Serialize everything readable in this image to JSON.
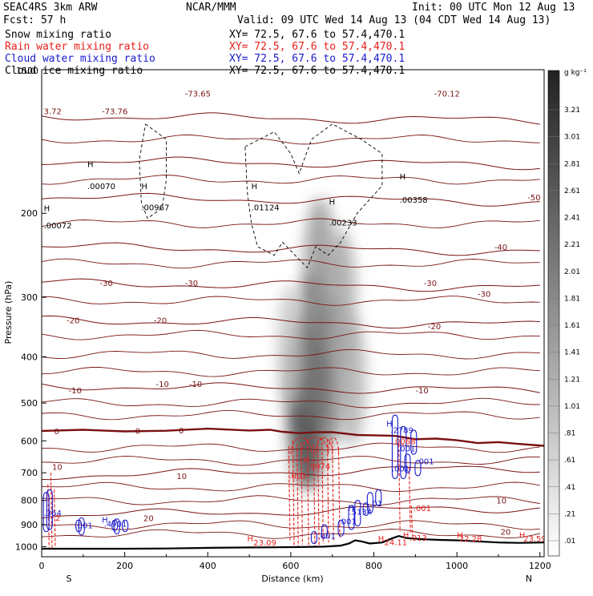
{
  "header": {
    "model": "SEAC4RS  3km ARW",
    "org": "NCAR/MMM",
    "init": "Init: 00 UTC Mon 12 Aug 13",
    "fcst": "Fcst:   57 h",
    "valid": "Valid: 09 UTC Wed 14 Aug 13 (04 CDT Wed 14 Aug 13)",
    "fields": [
      {
        "name": "Snow mixing ratio",
        "xy": "XY=  72.5, 67.6 to  57.4,470.1",
        "color": "#000000"
      },
      {
        "name": "Rain water mixing ratio",
        "xy": "XY=  72.5, 67.6 to  57.4,470.1",
        "color": "#e8201c"
      },
      {
        "name": "Cloud water mixing ratio",
        "xy": "XY=  72.5, 67.6 to  57.4,470.1",
        "color": "#1a1acc"
      },
      {
        "name": "Cloud ice mixing ratio",
        "xy": "XY=  72.5, 67.6 to  57.4,470.1",
        "color": "#000000"
      }
    ]
  },
  "chart_data": {
    "type": "heatmap",
    "xlabel": "Distance (km)",
    "ylabel": "Pressure (hPa)",
    "xlim": [
      0,
      1210
    ],
    "ylim": [
      1050,
      100
    ],
    "x_ticks": [
      0,
      200,
      400,
      600,
      800,
      1000,
      1200
    ],
    "y_ticks": [
      1000,
      900,
      800,
      700,
      600,
      500,
      400,
      300,
      200
    ],
    "y_top_label": "1500",
    "direction_labels": {
      "left": "S",
      "right": "N"
    },
    "colorbar": {
      "unit": "g kg⁻¹",
      "labels": [
        "3.21",
        "3.01",
        "2.81",
        "2.61",
        "2.41",
        "2.21",
        "2.01",
        "1.81",
        "1.61",
        "1.41",
        "1.21",
        "1.01",
        ".81",
        ".61",
        ".41",
        ".21",
        ".01"
      ]
    },
    "snow_shading": [
      {
        "x": 640,
        "p": 500,
        "amount": 3.2
      },
      {
        "x": 655,
        "p": 380,
        "amount": 2.0
      },
      {
        "x": 670,
        "p": 260,
        "amount": 1.5
      },
      {
        "x": 695,
        "p": 430,
        "amount": 1.8
      },
      {
        "x": 720,
        "p": 300,
        "amount": 1.2
      },
      {
        "x": 745,
        "p": 450,
        "amount": 1.0
      },
      {
        "x": 600,
        "p": 380,
        "amount": 0.6
      }
    ],
    "terrain": [
      [
        0,
        1010
      ],
      [
        100,
        1010
      ],
      [
        200,
        1010
      ],
      [
        300,
        1009
      ],
      [
        400,
        1006
      ],
      [
        500,
        1004
      ],
      [
        560,
        1003
      ],
      [
        620,
        1002
      ],
      [
        680,
        1000
      ],
      [
        720,
        995
      ],
      [
        740,
        985
      ],
      [
        755,
        970
      ],
      [
        770,
        975
      ],
      [
        790,
        985
      ],
      [
        820,
        980
      ],
      [
        845,
        960
      ],
      [
        860,
        950
      ],
      [
        880,
        960
      ],
      [
        920,
        965
      ],
      [
        960,
        968
      ],
      [
        1000,
        970
      ],
      [
        1050,
        975
      ],
      [
        1100,
        980
      ],
      [
        1150,
        982
      ],
      [
        1210,
        980
      ]
    ],
    "freezing_level": [
      [
        0,
        572
      ],
      [
        100,
        572
      ],
      [
        200,
        571
      ],
      [
        300,
        570
      ],
      [
        400,
        569
      ],
      [
        500,
        570
      ],
      [
        550,
        572
      ],
      [
        580,
        574
      ],
      [
        620,
        575
      ],
      [
        660,
        577
      ],
      [
        700,
        578
      ],
      [
        760,
        580
      ],
      [
        800,
        585
      ],
      [
        850,
        588
      ],
      [
        900,
        592
      ],
      [
        950,
        595
      ],
      [
        1000,
        600
      ],
      [
        1050,
        603
      ],
      [
        1100,
        606
      ],
      [
        1150,
        610
      ],
      [
        1210,
        612
      ]
    ],
    "isotherms": [
      {
        "value": -70,
        "p": 125
      },
      {
        "value": -60,
        "p": 155
      },
      {
        "value": -50,
        "p": 185
      },
      {
        "value": -40,
        "p": 235
      },
      {
        "value": -30,
        "p": 280
      },
      {
        "value": -20,
        "p": 335
      },
      {
        "value": -10,
        "p": 460
      },
      {
        "value": 10,
        "p": 710
      },
      {
        "value": 20,
        "p": 860
      }
    ],
    "isotherm_labels": [
      {
        "text": "-73.65",
        "x": 345,
        "p": 112
      },
      {
        "text": "-73.76",
        "x": 145,
        "p": 122
      },
      {
        "text": "3.72",
        "x": 5,
        "p": 122
      },
      {
        "text": "-70.12",
        "x": 945,
        "p": 112
      },
      {
        "text": "-50",
        "x": 1170,
        "p": 185
      },
      {
        "text": "-40",
        "x": 1090,
        "p": 235
      },
      {
        "text": "-30",
        "x": 140,
        "p": 280
      },
      {
        "text": "-30",
        "x": 345,
        "p": 280
      },
      {
        "text": "-30",
        "x": 920,
        "p": 280
      },
      {
        "text": "-30",
        "x": 1050,
        "p": 295
      },
      {
        "text": "-20",
        "x": 60,
        "p": 335
      },
      {
        "text": "-20",
        "x": 270,
        "p": 335
      },
      {
        "text": "-20",
        "x": 930,
        "p": 345
      },
      {
        "text": "-10",
        "x": 275,
        "p": 455
      },
      {
        "text": "-10",
        "x": 355,
        "p": 455
      },
      {
        "text": "-10",
        "x": 900,
        "p": 470
      },
      {
        "text": "-10",
        "x": 65,
        "p": 470
      },
      {
        "text": "0",
        "x": 30,
        "p": 572
      },
      {
        "text": "0",
        "x": 225,
        "p": 571
      },
      {
        "text": "0",
        "x": 330,
        "p": 570
      },
      {
        "text": "10",
        "x": 25,
        "p": 680
      },
      {
        "text": "10",
        "x": 325,
        "p": 710
      },
      {
        "text": "10",
        "x": 1095,
        "p": 800
      },
      {
        "text": "20",
        "x": 245,
        "p": 870
      },
      {
        "text": "20",
        "x": 1105,
        "p": 930
      }
    ],
    "maxima_labels": [
      {
        "text": "H",
        "x": 110,
        "p": 160,
        "color": "#000000"
      },
      {
        "text": ".00070",
        "x": 110,
        "p": 178,
        "color": "#000000"
      },
      {
        "text": "H",
        "x": 240,
        "p": 178,
        "color": "#000000"
      },
      {
        "text": ".00967",
        "x": 240,
        "p": 197,
        "color": "#000000"
      },
      {
        "text": "H",
        "x": 505,
        "p": 178,
        "color": "#000000"
      },
      {
        "text": ".01124",
        "x": 505,
        "p": 197,
        "color": "#000000"
      },
      {
        "text": "H",
        "x": 692,
        "p": 192,
        "color": "#000000"
      },
      {
        "text": ".00233",
        "x": 692,
        "p": 212,
        "color": "#000000"
      },
      {
        "text": "H",
        "x": 862,
        "p": 170,
        "color": "#000000"
      },
      {
        "text": ".00358",
        "x": 862,
        "p": 190,
        "color": "#000000"
      },
      {
        "text": "H",
        "x": 5,
        "p": 198,
        "color": "#000000"
      },
      {
        "text": ".00072",
        "x": 5,
        "p": 215,
        "color": "#000000"
      },
      {
        "text": "H",
        "x": 830,
        "p": 560,
        "color": "#1a1acc"
      },
      {
        "text": ".2789",
        "x": 840,
        "p": 578,
        "color": "#1a1acc"
      },
      {
        "text": "H",
        "x": 630,
        "p": 668,
        "color": "#e8201c"
      },
      {
        "text": ".5074",
        "x": 640,
        "p": 688,
        "color": "#e8201c"
      },
      {
        "text": ".001",
        "x": 595,
        "p": 720,
        "color": "#e8201c"
      },
      {
        "text": ".0068",
        "x": 845,
        "p": 610,
        "color": "#e8201c"
      },
      {
        "text": ".001",
        "x": 857,
        "p": 632,
        "color": "#1a1acc"
      },
      {
        "text": ".001",
        "x": 902,
        "p": 672,
        "color": "#1a1acc"
      },
      {
        "text": ".001",
        "x": 843,
        "p": 695,
        "color": "#1a1acc"
      },
      {
        "text": ".001",
        "x": 895,
        "p": 842,
        "color": "#e8201c"
      },
      {
        "text": "H",
        "x": 738,
        "p": 840,
        "color": "#1a1acc"
      },
      {
        "text": ".5134",
        "x": 740,
        "p": 857,
        "color": "#1a1acc"
      },
      {
        "text": ".001",
        "x": 715,
        "p": 898,
        "color": "#1a1acc"
      },
      {
        "text": ".001",
        "x": 665,
        "p": 963,
        "color": "#1a1acc"
      },
      {
        "text": ".01",
        "x": 790,
        "p": 823,
        "color": "#1a1acc"
      },
      {
        "text": ".364",
        "x": 5,
        "p": 862,
        "color": "#1a1acc"
      },
      {
        "text": "2",
        "x": 33,
        "p": 882,
        "color": "#e8201c"
      },
      {
        "text": ".001",
        "x": 80,
        "p": 915,
        "color": "#1a1acc"
      },
      {
        "text": "H",
        "x": 145,
        "p": 890,
        "color": "#1a1acc"
      },
      {
        "text": ".4901",
        "x": 150,
        "p": 908,
        "color": "#1a1acc"
      },
      {
        "text": "H",
        "x": 495,
        "p": 975,
        "color": "#e8201c"
      },
      {
        "text": "23.09",
        "x": 510,
        "p": 995,
        "color": "#e8201c"
      },
      {
        "text": "H",
        "x": 810,
        "p": 976,
        "color": "#e8201c"
      },
      {
        "text": "24.11",
        "x": 825,
        "p": 992,
        "color": "#e8201c"
      },
      {
        "text": "H",
        "x": 870,
        "p": 958,
        "color": "#e8201c"
      },
      {
        "text": ".013",
        "x": 885,
        "p": 972,
        "color": "#e8201c"
      },
      {
        "text": "H",
        "x": 1000,
        "p": 958,
        "color": "#e8201c"
      },
      {
        "text": "22.28",
        "x": 1005,
        "p": 975,
        "color": "#e8201c"
      },
      {
        "text": "H",
        "x": 1150,
        "p": 958,
        "color": "#e8201c"
      },
      {
        "text": "23.59",
        "x": 1160,
        "p": 975,
        "color": "#e8201c"
      }
    ],
    "rain_columns": [
      [
        15,
        740,
        1005
      ],
      [
        22,
        700,
        1005
      ],
      [
        30,
        760,
        1005
      ],
      [
        595,
        615,
        975
      ],
      [
        605,
        600,
        1000
      ],
      [
        615,
        610,
        1000
      ],
      [
        625,
        605,
        990
      ],
      [
        640,
        600,
        1000
      ],
      [
        655,
        610,
        1000
      ],
      [
        665,
        600,
        995
      ],
      [
        675,
        590,
        985
      ],
      [
        688,
        595,
        980
      ],
      [
        700,
        600,
        975
      ],
      [
        715,
        620,
        960
      ],
      [
        860,
        610,
        930
      ],
      [
        885,
        680,
        940
      ],
      [
        890,
        820,
        950
      ]
    ],
    "cloud_water_blobs": [
      [
        10,
        770,
        930
      ],
      [
        18,
        760,
        920
      ],
      [
        88,
        880,
        930
      ],
      [
        95,
        870,
        945
      ],
      [
        175,
        880,
        925
      ],
      [
        180,
        875,
        940
      ],
      [
        200,
        880,
        930
      ],
      [
        655,
        930,
        985
      ],
      [
        680,
        900,
        960
      ],
      [
        720,
        880,
        950
      ],
      [
        745,
        820,
        920
      ],
      [
        760,
        800,
        905
      ],
      [
        780,
        810,
        860
      ],
      [
        790,
        770,
        850
      ],
      [
        810,
        760,
        820
      ],
      [
        850,
        530,
        720
      ],
      [
        870,
        560,
        720
      ],
      [
        880,
        640,
        700
      ],
      [
        905,
        660,
        710
      ],
      [
        895,
        570,
        640
      ]
    ],
    "cloud_ice_outline": [
      [
        250,
        130
      ],
      [
        300,
        140
      ],
      [
        300,
        170
      ],
      [
        290,
        195
      ],
      [
        255,
        205
      ],
      [
        240,
        190
      ],
      [
        235,
        155
      ],
      [
        250,
        130
      ]
    ],
    "cloud_ice_outline2": [
      [
        490,
        145
      ],
      [
        560,
        135
      ],
      [
        600,
        150
      ],
      [
        620,
        165
      ],
      [
        650,
        140
      ],
      [
        700,
        130
      ],
      [
        770,
        140
      ],
      [
        820,
        150
      ],
      [
        820,
        175
      ],
      [
        760,
        200
      ],
      [
        720,
        230
      ],
      [
        690,
        245
      ],
      [
        660,
        235
      ],
      [
        640,
        260
      ],
      [
        620,
        250
      ],
      [
        580,
        230
      ],
      [
        560,
        245
      ],
      [
        520,
        235
      ],
      [
        505,
        210
      ],
      [
        495,
        180
      ],
      [
        490,
        145
      ]
    ]
  }
}
